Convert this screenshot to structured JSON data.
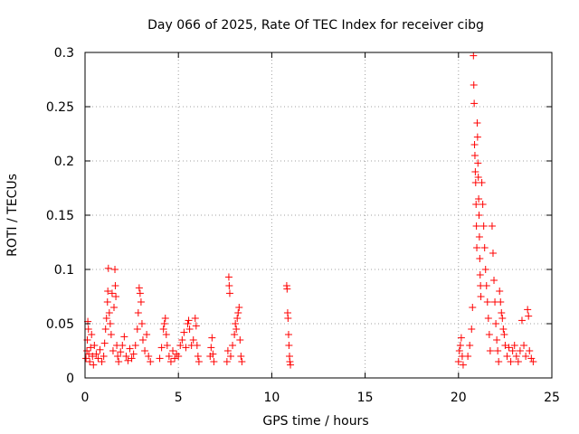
{
  "chart_data": {
    "type": "scatter",
    "title": "Day 066 of 2025, Rate Of TEC Index for receiver cibg",
    "xlabel": "GPS time / hours",
    "ylabel": "ROTI / TECUs",
    "xlim": [
      0,
      25
    ],
    "ylim": [
      0,
      0.3
    ],
    "xticks": [
      0,
      5,
      10,
      15,
      20,
      25
    ],
    "xtick_labels": [
      "0",
      "5",
      "10",
      "15",
      "20",
      "25"
    ],
    "yticks": [
      0,
      0.05,
      0.1,
      0.15,
      0.2,
      0.25,
      0.3
    ],
    "ytick_labels": [
      "0",
      "0.05",
      "0.1",
      "0.15",
      "0.2",
      "0.25",
      "0.3"
    ],
    "grid": true,
    "marker": "+",
    "marker_color": "#ff0000",
    "series": [
      {
        "name": "ROTI",
        "points": [
          [
            0.05,
            0.018
          ],
          [
            0.1,
            0.025
          ],
          [
            0.12,
            0.035
          ],
          [
            0.15,
            0.052
          ],
          [
            0.18,
            0.045
          ],
          [
            0.2,
            0.022
          ],
          [
            0.25,
            0.015
          ],
          [
            0.3,
            0.028
          ],
          [
            0.35,
            0.04
          ],
          [
            0.4,
            0.02
          ],
          [
            0.45,
            0.012
          ],
          [
            0.5,
            0.03
          ],
          [
            0.6,
            0.022
          ],
          [
            0.7,
            0.018
          ],
          [
            0.8,
            0.026
          ],
          [
            0.9,
            0.015
          ],
          [
            1.0,
            0.02
          ],
          [
            1.05,
            0.032
          ],
          [
            1.1,
            0.045
          ],
          [
            1.15,
            0.055
          ],
          [
            1.2,
            0.07
          ],
          [
            1.22,
            0.08
          ],
          [
            1.25,
            0.101
          ],
          [
            1.3,
            0.06
          ],
          [
            1.35,
            0.05
          ],
          [
            1.4,
            0.04
          ],
          [
            1.45,
            0.078
          ],
          [
            1.5,
            0.025
          ],
          [
            1.55,
            0.065
          ],
          [
            1.6,
            0.1
          ],
          [
            1.62,
            0.085
          ],
          [
            1.65,
            0.075
          ],
          [
            1.7,
            0.03
          ],
          [
            1.75,
            0.02
          ],
          [
            1.8,
            0.015
          ],
          [
            1.9,
            0.024
          ],
          [
            2.0,
            0.03
          ],
          [
            2.1,
            0.038
          ],
          [
            2.2,
            0.02
          ],
          [
            2.3,
            0.016
          ],
          [
            2.4,
            0.027
          ],
          [
            2.5,
            0.018
          ],
          [
            2.6,
            0.022
          ],
          [
            2.7,
            0.03
          ],
          [
            2.8,
            0.045
          ],
          [
            2.85,
            0.06
          ],
          [
            2.9,
            0.083
          ],
          [
            2.95,
            0.078
          ],
          [
            3.0,
            0.07
          ],
          [
            3.05,
            0.05
          ],
          [
            3.1,
            0.035
          ],
          [
            3.2,
            0.025
          ],
          [
            3.3,
            0.04
          ],
          [
            3.4,
            0.02
          ],
          [
            3.5,
            0.015
          ],
          [
            4.0,
            0.018
          ],
          [
            4.1,
            0.028
          ],
          [
            4.2,
            0.045
          ],
          [
            4.25,
            0.05
          ],
          [
            4.3,
            0.055
          ],
          [
            4.35,
            0.04
          ],
          [
            4.4,
            0.03
          ],
          [
            4.5,
            0.02
          ],
          [
            4.6,
            0.015
          ],
          [
            4.7,
            0.025
          ],
          [
            4.8,
            0.018
          ],
          [
            4.9,
            0.022
          ],
          [
            5.0,
            0.02
          ],
          [
            5.1,
            0.03
          ],
          [
            5.2,
            0.035
          ],
          [
            5.3,
            0.042
          ],
          [
            5.4,
            0.028
          ],
          [
            5.5,
            0.05
          ],
          [
            5.55,
            0.053
          ],
          [
            5.6,
            0.045
          ],
          [
            5.7,
            0.03
          ],
          [
            5.8,
            0.035
          ],
          [
            5.9,
            0.055
          ],
          [
            5.95,
            0.048
          ],
          [
            6.0,
            0.03
          ],
          [
            6.05,
            0.02
          ],
          [
            6.1,
            0.015
          ],
          [
            6.7,
            0.02
          ],
          [
            6.75,
            0.028
          ],
          [
            6.8,
            0.037
          ],
          [
            6.85,
            0.022
          ],
          [
            6.9,
            0.015
          ],
          [
            7.6,
            0.015
          ],
          [
            7.65,
            0.025
          ],
          [
            7.7,
            0.093
          ],
          [
            7.72,
            0.085
          ],
          [
            7.75,
            0.078
          ],
          [
            7.8,
            0.02
          ],
          [
            7.9,
            0.03
          ],
          [
            8.0,
            0.04
          ],
          [
            8.05,
            0.05
          ],
          [
            8.1,
            0.045
          ],
          [
            8.15,
            0.055
          ],
          [
            8.2,
            0.06
          ],
          [
            8.25,
            0.065
          ],
          [
            8.3,
            0.035
          ],
          [
            8.35,
            0.02
          ],
          [
            8.4,
            0.015
          ],
          [
            10.8,
            0.085
          ],
          [
            10.82,
            0.082
          ],
          [
            10.85,
            0.06
          ],
          [
            10.87,
            0.055
          ],
          [
            10.9,
            0.04
          ],
          [
            10.92,
            0.03
          ],
          [
            10.95,
            0.02
          ],
          [
            10.97,
            0.015
          ],
          [
            11.0,
            0.012
          ],
          [
            20.0,
            0.015
          ],
          [
            20.05,
            0.025
          ],
          [
            20.1,
            0.03
          ],
          [
            20.15,
            0.037
          ],
          [
            20.2,
            0.02
          ],
          [
            20.25,
            0.012
          ],
          [
            20.5,
            0.02
          ],
          [
            20.6,
            0.03
          ],
          [
            20.7,
            0.045
          ],
          [
            20.75,
            0.065
          ],
          [
            20.8,
            0.297
          ],
          [
            20.82,
            0.27
          ],
          [
            20.84,
            0.253
          ],
          [
            20.86,
            0.215
          ],
          [
            20.88,
            0.205
          ],
          [
            20.9,
            0.19
          ],
          [
            20.92,
            0.18
          ],
          [
            20.94,
            0.16
          ],
          [
            20.96,
            0.14
          ],
          [
            20.98,
            0.12
          ],
          [
            21.0,
            0.235
          ],
          [
            21.02,
            0.222
          ],
          [
            21.04,
            0.198
          ],
          [
            21.06,
            0.185
          ],
          [
            21.08,
            0.165
          ],
          [
            21.1,
            0.15
          ],
          [
            21.12,
            0.13
          ],
          [
            21.14,
            0.11
          ],
          [
            21.16,
            0.095
          ],
          [
            21.18,
            0.085
          ],
          [
            21.2,
            0.075
          ],
          [
            21.25,
            0.18
          ],
          [
            21.3,
            0.16
          ],
          [
            21.35,
            0.14
          ],
          [
            21.4,
            0.12
          ],
          [
            21.45,
            0.1
          ],
          [
            21.5,
            0.085
          ],
          [
            21.55,
            0.07
          ],
          [
            21.6,
            0.055
          ],
          [
            21.65,
            0.04
          ],
          [
            21.7,
            0.025
          ],
          [
            21.8,
            0.14
          ],
          [
            21.85,
            0.115
          ],
          [
            21.9,
            0.09
          ],
          [
            21.95,
            0.07
          ],
          [
            22.0,
            0.05
          ],
          [
            22.05,
            0.035
          ],
          [
            22.1,
            0.025
          ],
          [
            22.15,
            0.015
          ],
          [
            22.2,
            0.08
          ],
          [
            22.25,
            0.07
          ],
          [
            22.3,
            0.06
          ],
          [
            22.35,
            0.055
          ],
          [
            22.4,
            0.045
          ],
          [
            22.45,
            0.04
          ],
          [
            22.5,
            0.03
          ],
          [
            22.6,
            0.02
          ],
          [
            22.7,
            0.028
          ],
          [
            22.8,
            0.015
          ],
          [
            22.9,
            0.025
          ],
          [
            23.0,
            0.03
          ],
          [
            23.1,
            0.02
          ],
          [
            23.2,
            0.015
          ],
          [
            23.3,
            0.025
          ],
          [
            23.4,
            0.053
          ],
          [
            23.5,
            0.03
          ],
          [
            23.6,
            0.02
          ],
          [
            23.7,
            0.063
          ],
          [
            23.75,
            0.057
          ],
          [
            23.8,
            0.025
          ],
          [
            23.9,
            0.018
          ],
          [
            24.0,
            0.015
          ]
        ]
      }
    ]
  }
}
